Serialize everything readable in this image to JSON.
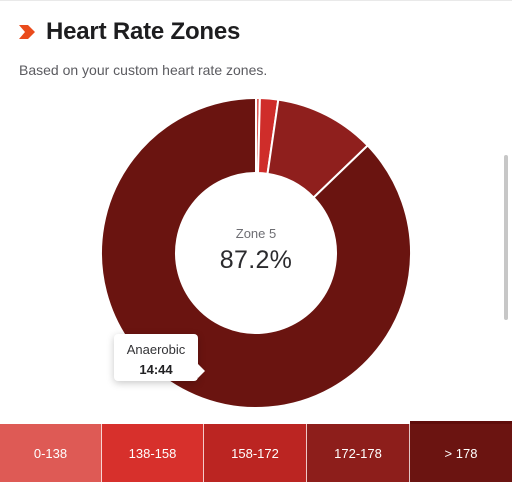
{
  "header": {
    "icon": "chevron-right-icon",
    "title": "Heart Rate Zones",
    "subtitle": "Based on your custom heart rate zones."
  },
  "chart_data": {
    "type": "pie",
    "variant": "donut",
    "labels": [
      "0-138",
      "138-158",
      "158-172",
      "172-178",
      "> 178"
    ],
    "values": [
      0.4,
      1.9,
      10.5,
      0.0,
      87.2
    ],
    "colors": [
      "#de5a55",
      "#cf2d2a",
      "#8f1f1d",
      "#7a1714",
      "#6a1410"
    ],
    "highlight_index": 4
  },
  "center": {
    "label": "Zone 5",
    "value": "87.2%"
  },
  "tooltip": {
    "title": "Anaerobic",
    "value": "14:44"
  },
  "zones": [
    {
      "label": "0-138",
      "color": "#de5a55"
    },
    {
      "label": "138-158",
      "color": "#d7302c"
    },
    {
      "label": "158-172",
      "color": "#bb2522"
    },
    {
      "label": "172-178",
      "color": "#8d1e1b"
    },
    {
      "label": "> 178",
      "color": "#6b1411"
    }
  ],
  "scroll": {
    "position": 0.28
  }
}
